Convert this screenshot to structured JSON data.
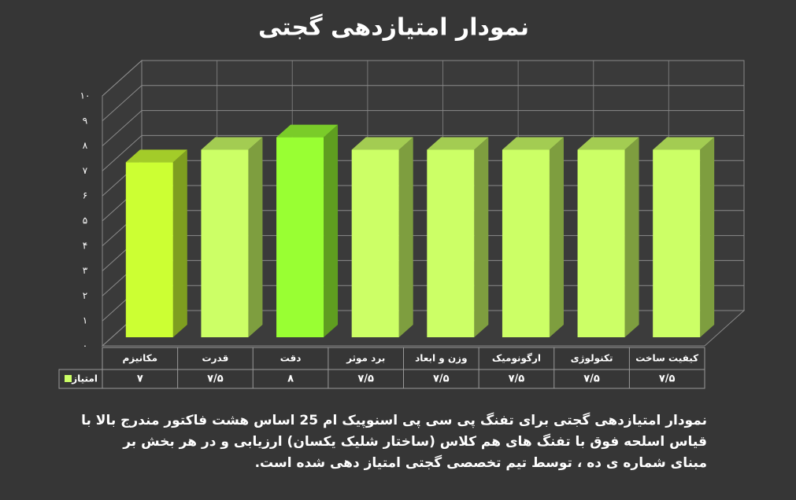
{
  "chart_data": {
    "type": "bar3d",
    "title": "نمودار امتیازدهی گجتی",
    "categories": [
      "مکانیزم",
      "قدرت",
      "دقت",
      "برد موثر",
      "وزن و ابعاد",
      "ارگونومیک",
      "تکنولوژی",
      "کیفیت ساخت"
    ],
    "series": [
      {
        "name": "امتیاز",
        "color": "#ccff66",
        "colors": [
          "#ccff33",
          "#ccff66",
          "#99ff33",
          "#ccff66",
          "#ccff66",
          "#ccff66",
          "#ccff66",
          "#ccff66"
        ],
        "values": [
          7,
          7.5,
          8,
          7.5,
          7.5,
          7.5,
          7.5,
          7.5
        ],
        "value_labels": [
          "۷",
          "۷/۵",
          "۸",
          "۷/۵",
          "۷/۵",
          "۷/۵",
          "۷/۵",
          "۷/۵"
        ]
      }
    ],
    "ylim": [
      0,
      10
    ],
    "yticks": [
      {
        "value": 0,
        "label": "۰"
      },
      {
        "value": 1,
        "label": "۱"
      },
      {
        "value": 2,
        "label": "۲"
      },
      {
        "value": 3,
        "label": "۳"
      },
      {
        "value": 4,
        "label": "۴"
      },
      {
        "value": 5,
        "label": "۵"
      },
      {
        "value": 6,
        "label": "۶"
      },
      {
        "value": 7,
        "label": "۷"
      },
      {
        "value": 8,
        "label": "۸"
      },
      {
        "value": 9,
        "label": "۹"
      },
      {
        "value": 10,
        "label": "۱۰"
      }
    ],
    "grid": true,
    "caption": [
      "نمودار امتیازدهی گجتی برای تفنگ پی سی پی اسنوپیک ام 25 اساس هشت فاکتور مندرج بالا با",
      "قیاس اسلحه فوق با تفنگ های هم کلاس (ساختار شلیک یکسان) ارزیابی و در هر بخش بر",
      "مبنای شماره ی ده ، توسط تیم تخصصی گجتی امتیاز دهی شده است."
    ]
  }
}
